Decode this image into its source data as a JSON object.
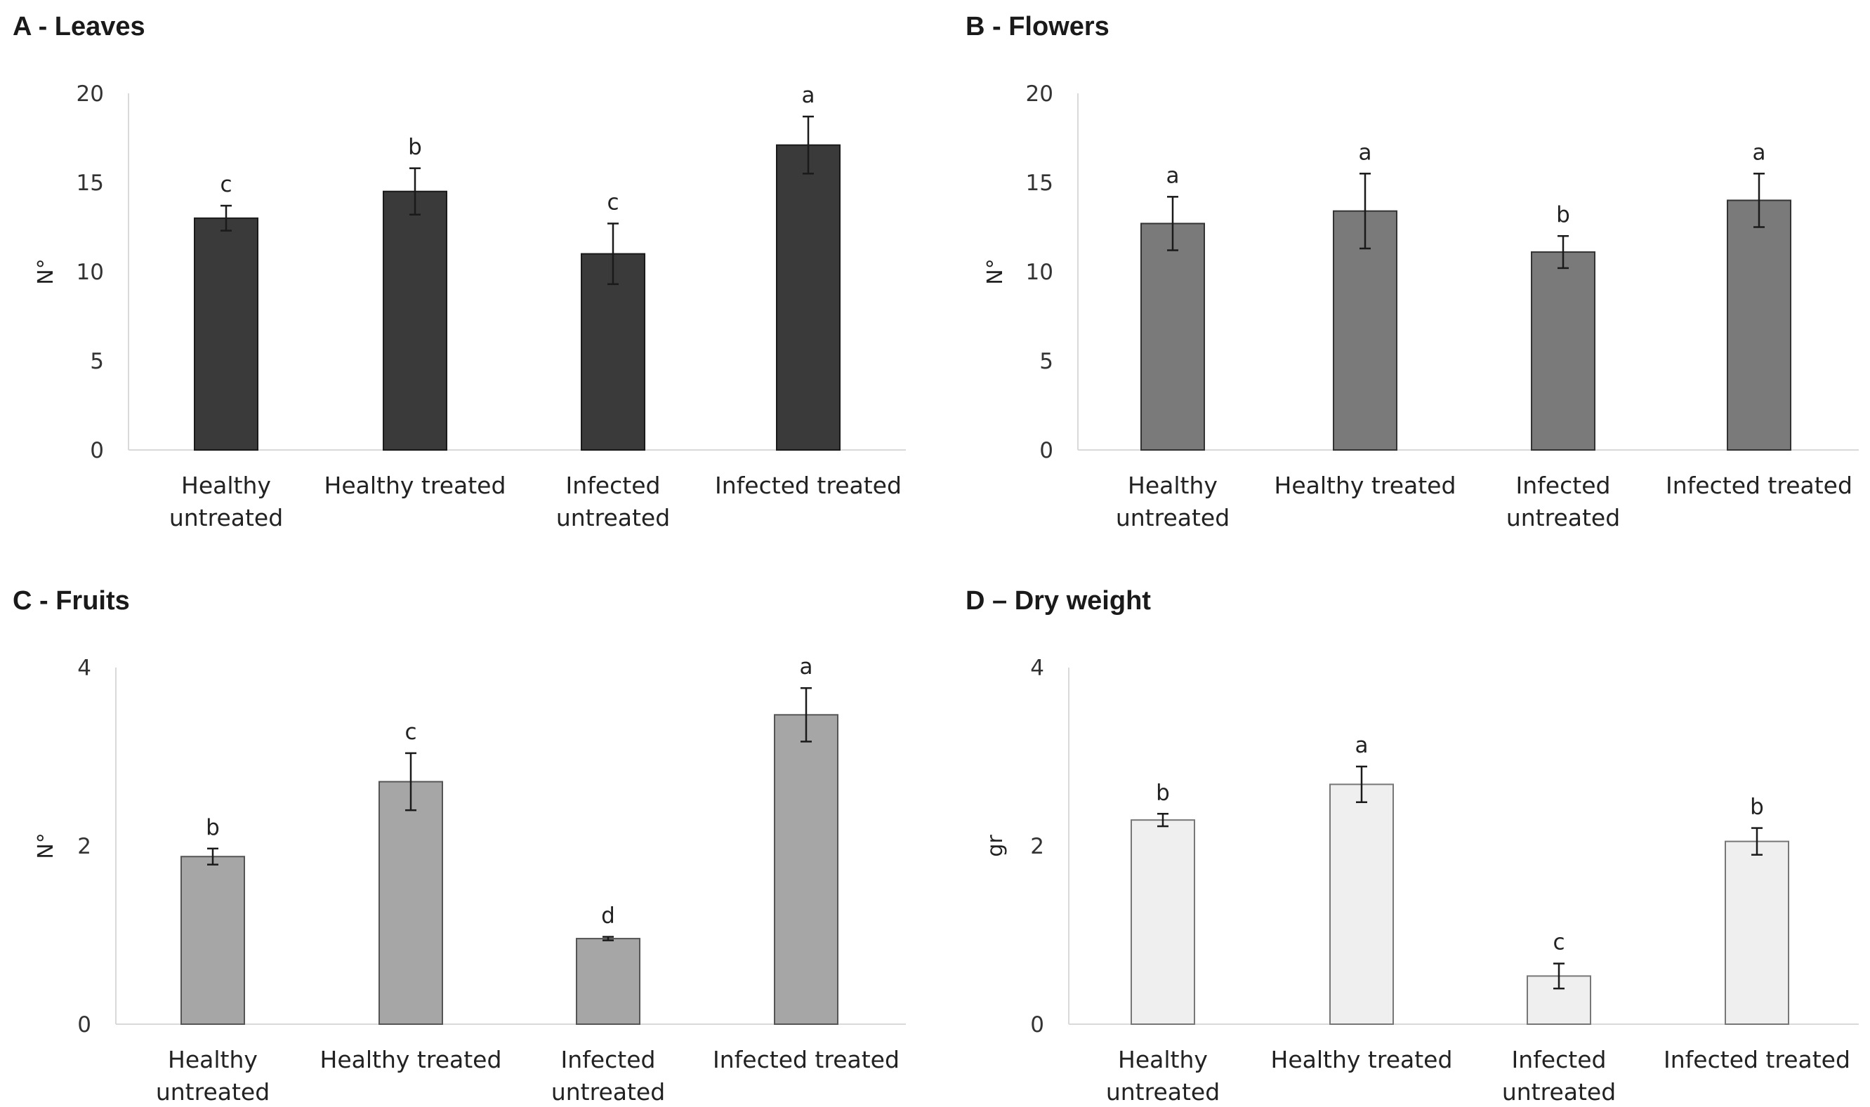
{
  "chart_data": [
    {
      "type": "bar",
      "title": "A - Leaves",
      "ylabel": "N°",
      "xlabel": "",
      "ylim": [
        0,
        20
      ],
      "yticks": [
        0,
        5,
        10,
        15,
        20
      ],
      "categories": [
        [
          "Healthy",
          "untreated"
        ],
        [
          "Healthy treated"
        ],
        [
          "Infected",
          "untreated"
        ],
        [
          "Infected treated"
        ]
      ],
      "values": [
        13.0,
        14.5,
        11.0,
        17.1
      ],
      "errors": [
        0.7,
        1.3,
        1.7,
        1.6
      ],
      "letters": [
        "c",
        "b",
        "c",
        "a"
      ],
      "color": "#3a3a3a",
      "edge": "#1a1a1a"
    },
    {
      "type": "bar",
      "title": "B - Flowers",
      "ylabel": "N°",
      "xlabel": "",
      "ylim": [
        0,
        20
      ],
      "yticks": [
        0,
        5,
        10,
        15,
        20
      ],
      "categories": [
        [
          "Healthy",
          "untreated"
        ],
        [
          "Healthy treated"
        ],
        [
          "Infected",
          "untreated"
        ],
        [
          "Infected treated"
        ]
      ],
      "values": [
        12.7,
        13.4,
        11.1,
        14.0
      ],
      "errors": [
        1.5,
        2.1,
        0.9,
        1.5
      ],
      "letters": [
        "a",
        "a",
        "b",
        "a"
      ],
      "color": "#7a7a7a",
      "edge": "#333333"
    },
    {
      "type": "bar",
      "title": "C - Fruits",
      "ylabel": "N°",
      "xlabel": "",
      "ylim": [
        0,
        4
      ],
      "yticks": [
        0,
        2,
        4
      ],
      "categories": [
        [
          "Healthy",
          "untreated"
        ],
        [
          "Healthy treated"
        ],
        [
          "Infected",
          "untreated"
        ],
        [
          "Infected treated"
        ]
      ],
      "values": [
        1.88,
        2.72,
        0.96,
        3.47
      ],
      "errors": [
        0.09,
        0.32,
        0.02,
        0.3
      ],
      "letters": [
        "b",
        "c",
        "d",
        "a"
      ],
      "color": "#a6a6a6",
      "edge": "#555555"
    },
    {
      "type": "bar",
      "title": "D – Dry weight",
      "ylabel": "gr",
      "xlabel": "",
      "ylim": [
        0,
        4
      ],
      "yticks": [
        0,
        2,
        4
      ],
      "categories": [
        [
          "Healthy",
          "untreated"
        ],
        [
          "Healthy treated"
        ],
        [
          "Infected",
          "untreated"
        ],
        [
          "Infected treated"
        ]
      ],
      "values": [
        2.29,
        2.69,
        0.54,
        2.05
      ],
      "errors": [
        0.07,
        0.2,
        0.14,
        0.15
      ],
      "letters": [
        "b",
        "a",
        "c",
        "b"
      ],
      "color": "#efefef",
      "edge": "#777777"
    }
  ]
}
